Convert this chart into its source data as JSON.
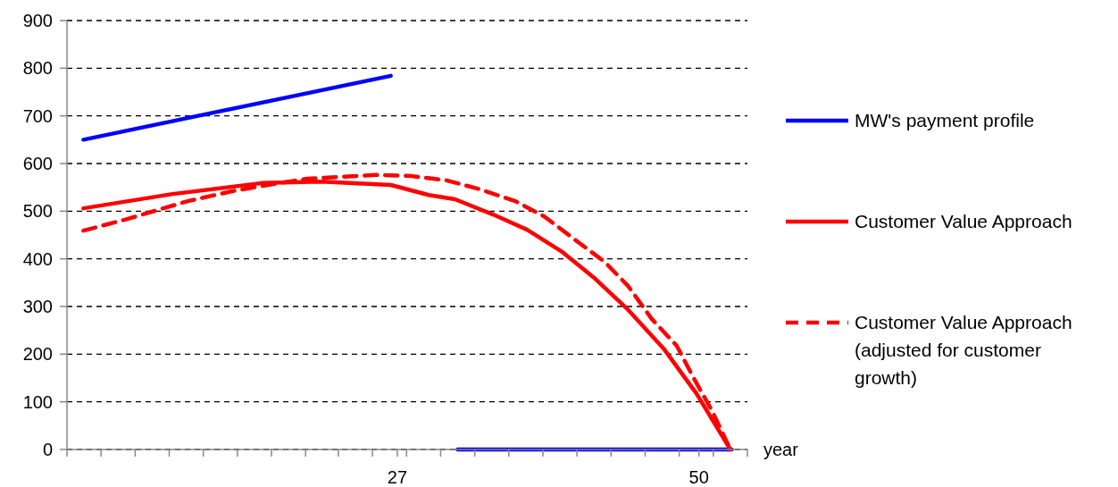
{
  "chart_data": {
    "type": "line",
    "xlabel": "year",
    "xlim": [
      1.8,
      53.7
    ],
    "xticks": [
      {
        "value": 1.8,
        "label": null
      },
      {
        "value": 4.4,
        "label": null
      },
      {
        "value": 7.0,
        "label": null
      },
      {
        "value": 9.6,
        "label": null
      },
      {
        "value": 12.2,
        "label": null
      },
      {
        "value": 14.8,
        "label": null
      },
      {
        "value": 17.4,
        "label": null
      },
      {
        "value": 20.0,
        "label": null
      },
      {
        "value": 22.5,
        "label": null
      },
      {
        "value": 25.1,
        "label": null
      },
      27,
      {
        "value": 27.7,
        "label": null
      },
      {
        "value": 30.3,
        "label": null
      },
      {
        "value": 32.9,
        "label": null
      },
      {
        "value": 35.5,
        "label": null
      },
      {
        "value": 38.1,
        "label": null
      },
      {
        "value": 40.7,
        "label": null
      },
      {
        "value": 43.3,
        "label": null
      },
      {
        "value": 45.9,
        "label": null
      },
      {
        "value": 48.5,
        "label": null
      },
      50,
      {
        "value": 51.1,
        "label": null
      },
      {
        "value": 53.7,
        "label": null
      }
    ],
    "ylim": [
      0,
      900
    ],
    "yticks": [
      0,
      100,
      200,
      300,
      400,
      500,
      600,
      700,
      800,
      900
    ],
    "grid": "y",
    "legend": "right",
    "marker": "none",
    "series": [
      {
        "name": "MW's payment profile",
        "color": "#0000ff",
        "line_style": "solid",
        "x": [
          3.05,
          26.5
        ],
        "values": [
          650,
          784
        ]
      },
      {
        "color": "#0000ff",
        "line_style": "solid",
        "x": [
          31.6,
          52.5
        ],
        "values": [
          0,
          0
        ]
      },
      {
        "name": "Customer Value Approach",
        "color": "#ff0000",
        "line_style": "solid",
        "x": [
          3.05,
          9.85,
          16.66,
          21.2,
          26.5,
          29.4,
          31.4,
          34.3,
          36.9,
          39.6,
          42.1,
          44.6,
          47.3,
          49.8,
          52.4
        ],
        "values": [
          506,
          536,
          559,
          562,
          555,
          534,
          525,
          493,
          461,
          414,
          358,
          293,
          212,
          118,
          0
        ]
      },
      {
        "name": "Customer Value Approach (adjusted for customer growth)",
        "color": "#ff0000",
        "line_style": "dashed",
        "x": [
          3.05,
          6.45,
          11.0,
          14.4,
          17.1,
          20.1,
          25.3,
          28.0,
          30.7,
          33.3,
          36.0,
          38.2,
          40.7,
          42.8,
          44.6,
          46.4,
          48.3,
          49.6,
          51.0,
          52.4
        ],
        "values": [
          459,
          484,
          521,
          542,
          555,
          568,
          576,
          574,
          565,
          546,
          521,
          489,
          437,
          394,
          343,
          274,
          218,
          150,
          81,
          0
        ]
      }
    ]
  }
}
